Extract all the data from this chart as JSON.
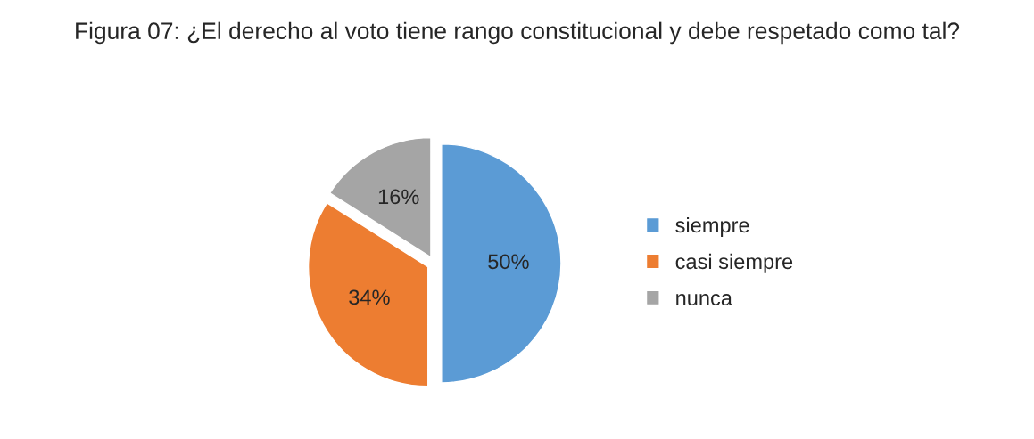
{
  "chart_data": {
    "type": "pie",
    "title": "Figura 07: ¿El derecho al voto tiene rango constitucional y debe respetado como tal?",
    "categories": [
      "siempre",
      "casi siempre",
      "nunca"
    ],
    "values": [
      50,
      34,
      16
    ],
    "colors": [
      "#5b9bd5",
      "#ed7d31",
      "#a5a5a5"
    ],
    "value_labels": [
      "50%",
      "34%",
      "16%"
    ],
    "legend": "right"
  }
}
